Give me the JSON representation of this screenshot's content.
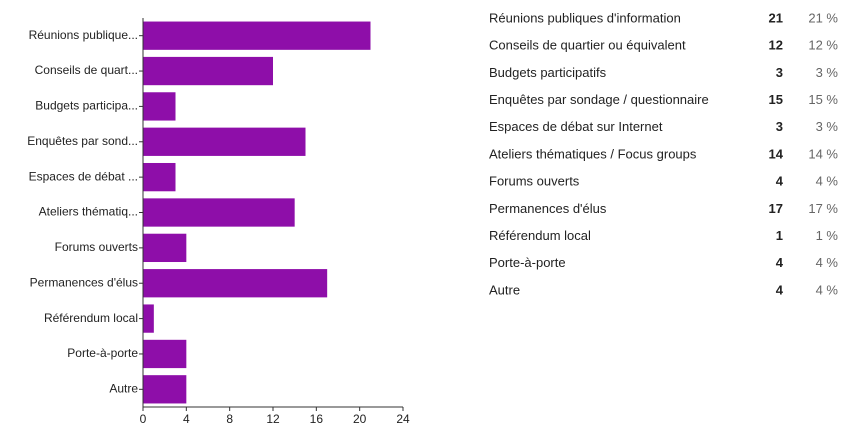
{
  "chart_data": {
    "type": "bar",
    "orientation": "horizontal",
    "categories": [
      "Réunions publique...",
      "Conseils de quart...",
      "Budgets participa...",
      "Enquêtes par sond...",
      "Espaces de débat ...",
      "Ateliers thématiq...",
      "Forums ouverts",
      "Permanences d'élus",
      "Référendum local",
      "Porte-à-porte",
      "Autre"
    ],
    "values": [
      21,
      12,
      3,
      15,
      3,
      14,
      4,
      17,
      1,
      4,
      4
    ],
    "color": "#8e0ea9",
    "xlim": [
      0,
      24
    ],
    "xticks": [
      0,
      4,
      8,
      12,
      16,
      20,
      24
    ]
  },
  "table": {
    "rows": [
      [
        "Réunions publiques d'information",
        21,
        "21 %"
      ],
      [
        "Conseils de quartier ou équivalent",
        12,
        "12 %"
      ],
      [
        "Budgets participatifs",
        3,
        "3 %"
      ],
      [
        "Enquêtes par sondage / questionnaire",
        15,
        "15 %"
      ],
      [
        "Espaces de débat sur Internet",
        3,
        "3 %"
      ],
      [
        "Ateliers thématiques / Focus groups",
        14,
        "14 %"
      ],
      [
        "Forums ouverts",
        4,
        "4 %"
      ],
      [
        "Permanences d'élus",
        17,
        "17 %"
      ],
      [
        "Référendum local",
        1,
        "1 %"
      ],
      [
        "Porte-à-porte",
        4,
        "4 %"
      ],
      [
        "Autre",
        4,
        "4 %"
      ]
    ]
  }
}
